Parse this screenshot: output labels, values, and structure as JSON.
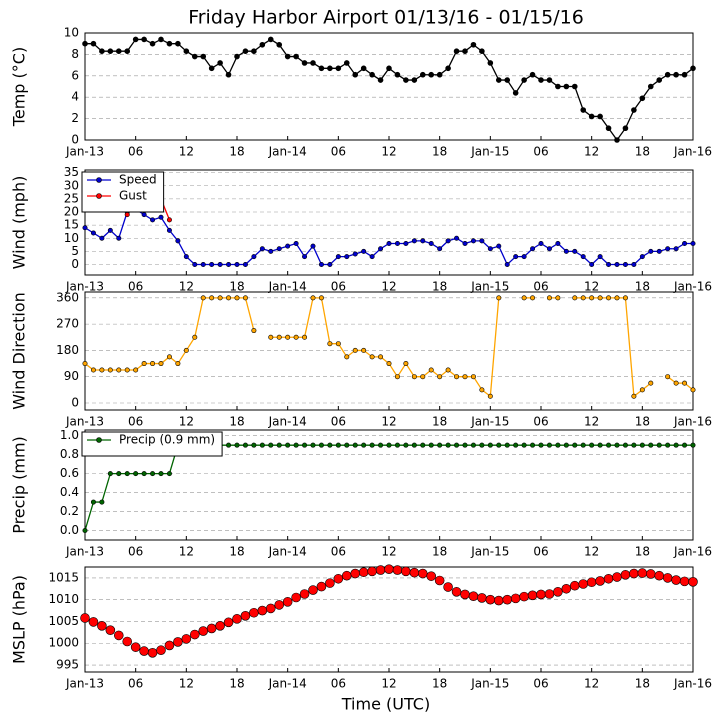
{
  "chart_data": [
    {
      "type": "line",
      "title": "Friday Harbor Airport 01/13/16 - 01/15/16",
      "ylabel": "Temp (°C)",
      "x": [
        0,
        1,
        2,
        3,
        4,
        5,
        6,
        7,
        8,
        9,
        10,
        11,
        12,
        13,
        14,
        15,
        16,
        17,
        18,
        19,
        20,
        21,
        22,
        23,
        24,
        25,
        26,
        27,
        28,
        29,
        30,
        31,
        32,
        33,
        34,
        35,
        36,
        37,
        38,
        39,
        40,
        41,
        42,
        43,
        44,
        45,
        46,
        47,
        48,
        49,
        50,
        51,
        52,
        53,
        54,
        55,
        56,
        57,
        58,
        59,
        60,
        61,
        62,
        63,
        64,
        65,
        66,
        67,
        68,
        69,
        70,
        71,
        72
      ],
      "xlim": [
        0,
        72
      ],
      "xticks": [
        {
          "value": 0,
          "label": "Jan-13"
        },
        {
          "value": 6,
          "label": "06"
        },
        {
          "value": 12,
          "label": "12"
        },
        {
          "value": 18,
          "label": "18"
        },
        {
          "value": 24,
          "label": "Jan-14"
        },
        {
          "value": 30,
          "label": "06"
        },
        {
          "value": 36,
          "label": "12"
        },
        {
          "value": 42,
          "label": "18"
        },
        {
          "value": 48,
          "label": "Jan-15"
        },
        {
          "value": 54,
          "label": "06"
        },
        {
          "value": 60,
          "label": "12"
        },
        {
          "value": 66,
          "label": "18"
        },
        {
          "value": 72,
          "label": "Jan-16"
        }
      ],
      "ylim": [
        0,
        10
      ],
      "yticks": [
        0,
        2,
        4,
        6,
        8,
        10
      ],
      "grid": true,
      "series": [
        {
          "color": "#000000",
          "values": [
            9,
            9,
            8.3,
            8.3,
            8.3,
            8.3,
            9.4,
            9.4,
            9,
            9.4,
            9,
            9,
            8.3,
            7.8,
            7.8,
            6.7,
            7.2,
            6.1,
            7.8,
            8.3,
            8.3,
            8.9,
            9.4,
            8.9,
            7.8,
            7.8,
            7.2,
            7.2,
            6.7,
            6.7,
            6.7,
            7.2,
            6.1,
            6.7,
            6.1,
            5.6,
            6.7,
            6.1,
            5.6,
            5.6,
            6.1,
            6.1,
            6.1,
            6.7,
            8.3,
            8.3,
            8.9,
            8.3,
            7.2,
            5.6,
            5.6,
            4.4,
            5.6,
            6.1,
            5.6,
            5.6,
            5,
            5,
            5,
            2.8,
            2.2,
            2.2,
            1.1,
            0,
            1.1,
            2.8,
            3.9,
            5,
            5.6,
            6.1,
            6.1,
            6.1,
            6.7
          ]
        }
      ]
    },
    {
      "type": "line",
      "ylabel": "Wind (mph)",
      "x": [
        0,
        1,
        2,
        3,
        4,
        5,
        6,
        7,
        8,
        9,
        10,
        11,
        12,
        13,
        14,
        15,
        16,
        17,
        18,
        19,
        20,
        21,
        22,
        23,
        24,
        25,
        26,
        27,
        28,
        29,
        30,
        31,
        32,
        33,
        34,
        35,
        36,
        37,
        38,
        39,
        40,
        41,
        42,
        43,
        44,
        45,
        46,
        47,
        48,
        49,
        50,
        51,
        52,
        53,
        54,
        55,
        56,
        57,
        58,
        59,
        60,
        61,
        62,
        63,
        64,
        65,
        66,
        67,
        68,
        69,
        70,
        71,
        72
      ],
      "xlim": [
        0,
        72
      ],
      "xticks": [
        {
          "value": 0,
          "label": "Jan-13"
        },
        {
          "value": 6,
          "label": "06"
        },
        {
          "value": 12,
          "label": "12"
        },
        {
          "value": 18,
          "label": "18"
        },
        {
          "value": 24,
          "label": "Jan-14"
        },
        {
          "value": 30,
          "label": "06"
        },
        {
          "value": 36,
          "label": "12"
        },
        {
          "value": 42,
          "label": "18"
        },
        {
          "value": 48,
          "label": "Jan-15"
        },
        {
          "value": 54,
          "label": "06"
        },
        {
          "value": 60,
          "label": "12"
        },
        {
          "value": 66,
          "label": "18"
        },
        {
          "value": 72,
          "label": "Jan-16"
        }
      ],
      "ylim": [
        -4,
        36
      ],
      "yticks": [
        0,
        5,
        10,
        15,
        20,
        25,
        30,
        35
      ],
      "grid": true,
      "legend": "upper left",
      "series": [
        {
          "name": "Speed",
          "color": "#0000cc",
          "values": [
            14,
            12,
            10,
            13,
            10,
            20,
            21,
            19,
            17,
            18,
            13,
            9,
            3,
            0,
            0,
            0,
            0,
            0,
            0,
            0,
            3,
            6,
            5,
            6,
            7,
            8,
            3,
            7,
            0,
            0,
            3,
            3,
            4,
            5,
            3,
            6,
            8,
            8,
            8,
            9,
            9,
            8,
            6,
            9,
            10,
            8,
            9,
            9,
            6,
            7,
            0,
            3,
            3,
            6,
            8,
            6,
            8,
            5,
            5,
            3,
            0,
            3,
            0,
            0,
            0,
            0,
            3,
            5,
            5,
            6,
            6,
            8,
            8
          ]
        },
        {
          "name": "Gust",
          "color": "#ff0000",
          "values": [
            null,
            null,
            null,
            null,
            null,
            19,
            null,
            null,
            null,
            25,
            17,
            null,
            null,
            null,
            null,
            null,
            null,
            null,
            null,
            null,
            null,
            null,
            null,
            null,
            null,
            null,
            null,
            null,
            null,
            null,
            null,
            null,
            null,
            null,
            null,
            null,
            null,
            null,
            null,
            null,
            null,
            null,
            null,
            null,
            null,
            null,
            null,
            null,
            null,
            null,
            null,
            null,
            null,
            null,
            null,
            null,
            null,
            null,
            null,
            null,
            null,
            null,
            null,
            null,
            null,
            null,
            null,
            null,
            null,
            null,
            null,
            null,
            null
          ]
        }
      ]
    },
    {
      "type": "line",
      "ylabel": "Wind Direction",
      "x": [
        0,
        1,
        2,
        3,
        4,
        5,
        6,
        7,
        8,
        9,
        10,
        11,
        12,
        13,
        14,
        15,
        16,
        17,
        18,
        19,
        20,
        21,
        22,
        23,
        24,
        25,
        26,
        27,
        28,
        29,
        30,
        31,
        32,
        33,
        34,
        35,
        36,
        37,
        38,
        39,
        40,
        41,
        42,
        43,
        44,
        45,
        46,
        47,
        48,
        49,
        50,
        51,
        52,
        53,
        54,
        55,
        56,
        57,
        58,
        59,
        60,
        61,
        62,
        63,
        64,
        65,
        66,
        67,
        68,
        69,
        70,
        71,
        72
      ],
      "xlim": [
        0,
        72
      ],
      "xticks": [
        {
          "value": 0,
          "label": "Jan-13"
        },
        {
          "value": 6,
          "label": "06"
        },
        {
          "value": 12,
          "label": "12"
        },
        {
          "value": 18,
          "label": "18"
        },
        {
          "value": 24,
          "label": "Jan-14"
        },
        {
          "value": 30,
          "label": "06"
        },
        {
          "value": 36,
          "label": "12"
        },
        {
          "value": 42,
          "label": "18"
        },
        {
          "value": 48,
          "label": "Jan-15"
        },
        {
          "value": 54,
          "label": "06"
        },
        {
          "value": 60,
          "label": "12"
        },
        {
          "value": 66,
          "label": "18"
        },
        {
          "value": 72,
          "label": "Jan-16"
        }
      ],
      "ylim": [
        -24,
        380
      ],
      "yticks": [
        0,
        90,
        180,
        270,
        360
      ],
      "grid": true,
      "series": [
        {
          "color": "#ffa500",
          "values": [
            135,
            113,
            113,
            113,
            113,
            113,
            113,
            135,
            135,
            135,
            158,
            135,
            180,
            225,
            360,
            360,
            360,
            360,
            360,
            360,
            248,
            null,
            225,
            225,
            225,
            225,
            225,
            360,
            360,
            203,
            203,
            158,
            180,
            180,
            158,
            158,
            135,
            90,
            135,
            90,
            90,
            113,
            90,
            113,
            90,
            90,
            90,
            45,
            23,
            360,
            null,
            null,
            360,
            360,
            null,
            360,
            360,
            null,
            360,
            360,
            360,
            360,
            360,
            360,
            360,
            23,
            45,
            68,
            null,
            90,
            68,
            68,
            45
          ]
        }
      ]
    },
    {
      "type": "line",
      "ylabel": "Precip (mm)",
      "x": [
        0,
        1,
        2,
        3,
        4,
        5,
        6,
        7,
        8,
        9,
        10,
        11,
        12,
        13,
        14,
        15,
        16,
        17,
        18,
        19,
        20,
        21,
        22,
        23,
        24,
        25,
        26,
        27,
        28,
        29,
        30,
        31,
        32,
        33,
        34,
        35,
        36,
        37,
        38,
        39,
        40,
        41,
        42,
        43,
        44,
        45,
        46,
        47,
        48,
        49,
        50,
        51,
        52,
        53,
        54,
        55,
        56,
        57,
        58,
        59,
        60,
        61,
        62,
        63,
        64,
        65,
        66,
        67,
        68,
        69,
        70,
        71,
        72
      ],
      "xlim": [
        0,
        72
      ],
      "xticks": [
        {
          "value": 0,
          "label": "Jan-13"
        },
        {
          "value": 6,
          "label": "06"
        },
        {
          "value": 12,
          "label": "12"
        },
        {
          "value": 18,
          "label": "18"
        },
        {
          "value": 24,
          "label": "Jan-14"
        },
        {
          "value": 30,
          "label": "06"
        },
        {
          "value": 36,
          "label": "12"
        },
        {
          "value": 42,
          "label": "18"
        },
        {
          "value": 48,
          "label": "Jan-15"
        },
        {
          "value": 54,
          "label": "06"
        },
        {
          "value": 60,
          "label": "12"
        },
        {
          "value": 66,
          "label": "18"
        },
        {
          "value": 72,
          "label": "Jan-16"
        }
      ],
      "ylim": [
        -0.1,
        1.06
      ],
      "yticks": [
        {
          "value": 0,
          "label": "0.0"
        },
        0.2,
        0.4,
        0.6,
        0.8,
        {
          "value": 1,
          "label": "1.0"
        }
      ],
      "grid": true,
      "legend": "upper left",
      "series": [
        {
          "name": "Precip (0.9 mm)",
          "color": "#006400",
          "values": [
            0,
            0.3,
            0.3,
            0.6,
            0.6,
            0.6,
            0.6,
            0.6,
            0.6,
            0.6,
            0.6,
            0.9,
            0.9,
            0.9,
            0.9,
            0.9,
            0.9,
            0.9,
            0.9,
            0.9,
            0.9,
            0.9,
            0.9,
            0.9,
            0.9,
            0.9,
            0.9,
            0.9,
            0.9,
            0.9,
            0.9,
            0.9,
            0.9,
            0.9,
            0.9,
            0.9,
            0.9,
            0.9,
            0.9,
            0.9,
            0.9,
            0.9,
            0.9,
            0.9,
            0.9,
            0.9,
            0.9,
            0.9,
            0.9,
            0.9,
            0.9,
            0.9,
            0.9,
            0.9,
            0.9,
            0.9,
            0.9,
            0.9,
            0.9,
            0.9,
            0.9,
            0.9,
            0.9,
            0.9,
            0.9,
            0.9,
            0.9,
            0.9,
            0.9,
            0.9,
            0.9,
            0.9,
            0.9
          ]
        }
      ]
    },
    {
      "type": "scatter",
      "ylabel": "MSLP (hPa)",
      "xlabel": "Time (UTC)",
      "x": [
        0,
        1,
        2,
        3,
        4,
        5,
        6,
        7,
        8,
        9,
        10,
        11,
        12,
        13,
        14,
        15,
        16,
        17,
        18,
        19,
        20,
        21,
        22,
        23,
        24,
        25,
        26,
        27,
        28,
        29,
        30,
        31,
        32,
        33,
        34,
        35,
        36,
        37,
        38,
        39,
        40,
        41,
        42,
        43,
        44,
        45,
        46,
        47,
        48,
        49,
        50,
        51,
        52,
        53,
        54,
        55,
        56,
        57,
        58,
        59,
        60,
        61,
        62,
        63,
        64,
        65,
        66,
        67,
        68,
        69,
        70,
        71,
        72
      ],
      "xlim": [
        0,
        72
      ],
      "xticks": [
        {
          "value": 0,
          "label": "Jan-13"
        },
        {
          "value": 6,
          "label": "06"
        },
        {
          "value": 12,
          "label": "12"
        },
        {
          "value": 18,
          "label": "18"
        },
        {
          "value": 24,
          "label": "Jan-14"
        },
        {
          "value": 30,
          "label": "06"
        },
        {
          "value": 36,
          "label": "12"
        },
        {
          "value": 42,
          "label": "18"
        },
        {
          "value": 48,
          "label": "Jan-15"
        },
        {
          "value": 54,
          "label": "06"
        },
        {
          "value": 60,
          "label": "12"
        },
        {
          "value": 66,
          "label": "18"
        },
        {
          "value": 72,
          "label": "Jan-16"
        }
      ],
      "ylim": [
        993.4,
        1017.5
      ],
      "yticks": [
        995,
        1000,
        1005,
        1010,
        1015
      ],
      "grid": true,
      "series": [
        {
          "color": "#ff0000",
          "values": [
            1005.8,
            1004.9,
            1004,
            1003,
            1001.8,
            1000.4,
            999.1,
            998.2,
            997.8,
            998.4,
            999.5,
            1000.3,
            1001,
            1002,
            1002.8,
            1003.4,
            1004,
            1004.8,
            1005.6,
            1006.3,
            1007,
            1007.5,
            1008,
            1008.8,
            1009.5,
            1010.5,
            1011.3,
            1012.2,
            1013,
            1013.8,
            1014.8,
            1015.5,
            1016,
            1016.3,
            1016.5,
            1016.8,
            1017,
            1016.8,
            1016.5,
            1016.2,
            1016,
            1015.4,
            1014.4,
            1012.9,
            1011.8,
            1011.2,
            1010.8,
            1010.4,
            1010,
            1009.8,
            1010,
            1010.3,
            1010.7,
            1011,
            1011.2,
            1011.3,
            1011.8,
            1012.5,
            1013.2,
            1013.6,
            1014,
            1014.3,
            1014.8,
            1015.2,
            1015.7,
            1016,
            1016.1,
            1015.9,
            1015.5,
            1015,
            1014.5,
            1014.2,
            1014.1
          ]
        }
      ]
    }
  ]
}
